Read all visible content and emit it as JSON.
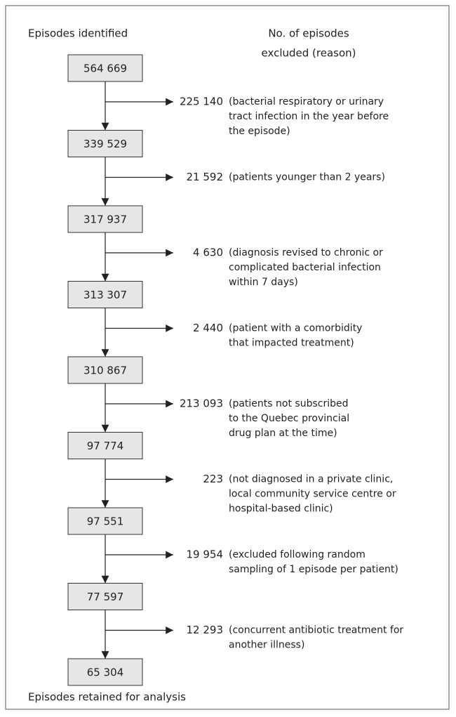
{
  "header": {
    "left": "Episodes identified",
    "right": [
      "No. of episodes",
      "excluded (reason)"
    ]
  },
  "boxes": [
    "564 669",
    "339 529",
    "317 937",
    "313 307",
    "310 867",
    "97 774",
    "97 551",
    "77 597",
    "65 304"
  ],
  "exclusions": [
    {
      "count": "225 140",
      "reason": [
        "(bacterial respiratory or urinary",
        "tract infection in the year before",
        "the episode)"
      ]
    },
    {
      "count": "21 592",
      "reason": [
        "(patients younger than 2 years)"
      ]
    },
    {
      "count": "4 630",
      "reason": [
        "(diagnosis revised to chronic or",
        "complicated bacterial infection",
        "within 7 days)"
      ]
    },
    {
      "count": "2 440",
      "reason": [
        "(patient with a comorbidity",
        "that impacted treatment)"
      ]
    },
    {
      "count": "213 093",
      "reason": [
        "(patients not subscribed",
        "to the Quebec provincial",
        "drug plan at the time)"
      ]
    },
    {
      "count": "223",
      "reason": [
        "(not diagnosed in a private clinic,",
        "local community service centre or",
        "hospital-based clinic)"
      ]
    },
    {
      "count": "19 954",
      "reason": [
        "(excluded following random",
        "sampling of 1 episode per patient)"
      ]
    },
    {
      "count": "12 293",
      "reason": [
        "(concurrent antibiotic treatment for",
        "another illness)"
      ]
    }
  ],
  "footer": "Episodes retained for analysis"
}
